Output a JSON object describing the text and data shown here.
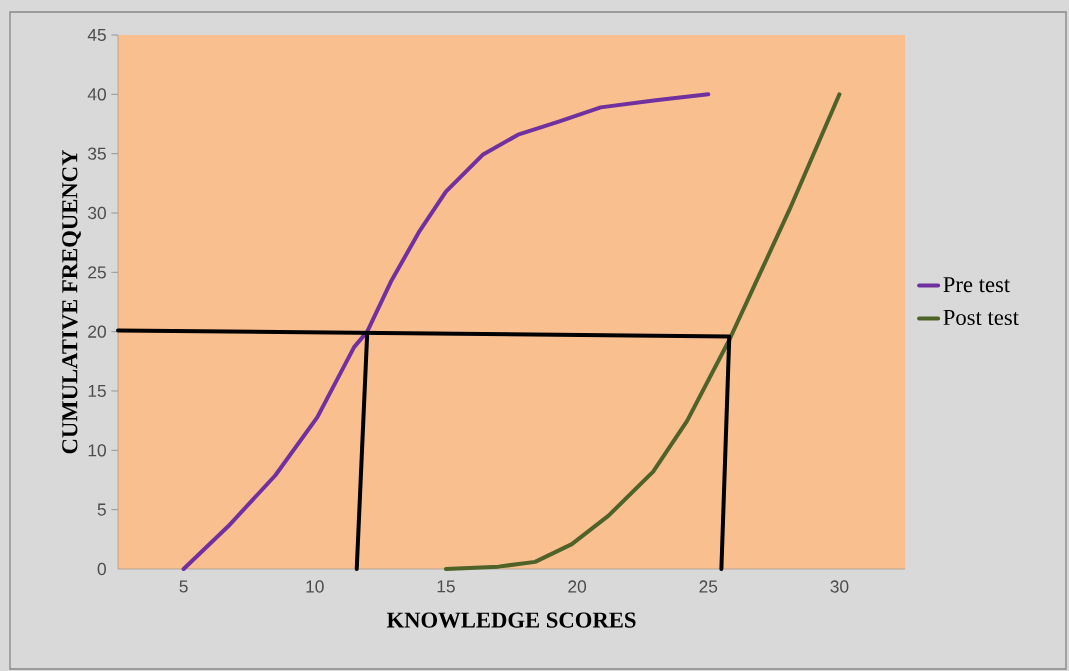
{
  "chart_data": {
    "type": "line",
    "xlabel": "KNOWLEDGE SCORES",
    "ylabel": "CUMULATIVE FREQUENCY",
    "xlim": [
      2.5,
      32.5
    ],
    "xticks": [
      5,
      10,
      15,
      20,
      25,
      30
    ],
    "ylim": [
      0,
      45
    ],
    "yticks": [
      0,
      5,
      10,
      15,
      20,
      25,
      30,
      35,
      40,
      45
    ],
    "legend": "right",
    "series": [
      {
        "name": "Pre test",
        "color": "#7030a0",
        "x": [
          5,
          6.7,
          8.5,
          10.1,
          11.5,
          12,
          12.9,
          14,
          15,
          16.4,
          17.75,
          19.3,
          20.9,
          23,
          25
        ],
        "values": [
          0,
          3.6,
          7.9,
          12.8,
          18.7,
          20,
          24.2,
          28.5,
          31.8,
          34.9,
          36.6,
          37.7,
          38.9,
          39.5,
          40
        ]
      },
      {
        "name": "Post test",
        "color": "#4f6228",
        "x": [
          15,
          17,
          18.4,
          19.8,
          21.2,
          22.9,
          24.2,
          25.8,
          26.7,
          28.1,
          30
        ],
        "values": [
          0,
          0.2,
          0.6,
          2.1,
          4.5,
          8.2,
          12.5,
          19.3,
          23.6,
          30.3,
          40
        ]
      },
      {
        "color": "#000000",
        "x": [
          2.5,
          25.8
        ],
        "values": [
          20.1,
          19.6
        ]
      },
      {
        "color": "#000000",
        "x": [
          11.6,
          12
        ],
        "values": [
          0,
          19.9
        ]
      },
      {
        "color": "#000000",
        "x": [
          25.5,
          25.8
        ],
        "values": [
          0,
          19.5
        ]
      }
    ]
  }
}
